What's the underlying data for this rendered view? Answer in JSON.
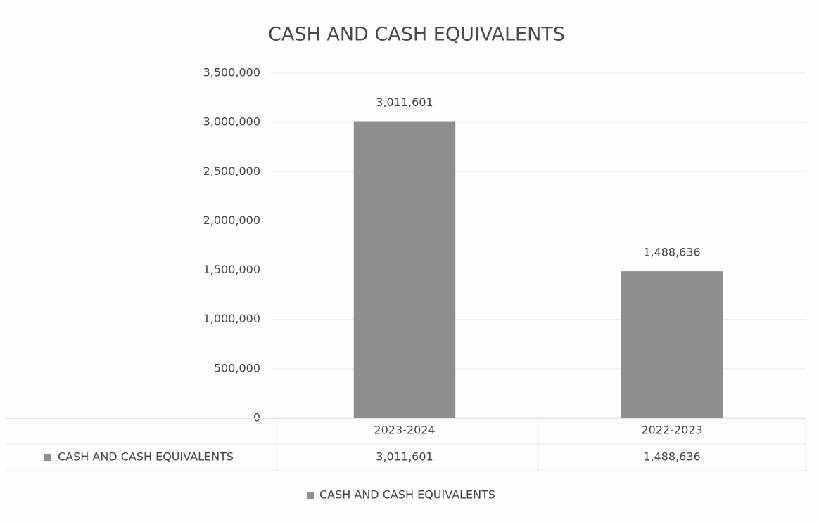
{
  "chart_data": {
    "type": "bar",
    "title": "CASH AND CASH EQUIVALENTS",
    "categories": [
      "2023-2024",
      "2022-2023"
    ],
    "series": [
      {
        "name": "CASH AND CASH EQUIVALENTS",
        "color": "#8e8e90",
        "values": [
          3011601,
          1488636
        ],
        "value_labels": [
          "3,011,601",
          "1,488,636"
        ]
      }
    ],
    "ylim": [
      0,
      3500000
    ],
    "yticks": [
      0,
      {
        "value": 500000,
        "label": "500,000"
      },
      {
        "value": 1000000,
        "label": "1,000,000"
      },
      {
        "value": 1500000,
        "label": "1,500,000"
      },
      {
        "value": 2000000,
        "label": "2,000,000"
      },
      {
        "value": 2500000,
        "label": "2,500,000"
      },
      {
        "value": 3000000,
        "label": "3,000,000"
      },
      {
        "value": 3500000,
        "label": "3,500,000"
      }
    ],
    "grid": true,
    "data_table": true,
    "legend": "bottom"
  }
}
